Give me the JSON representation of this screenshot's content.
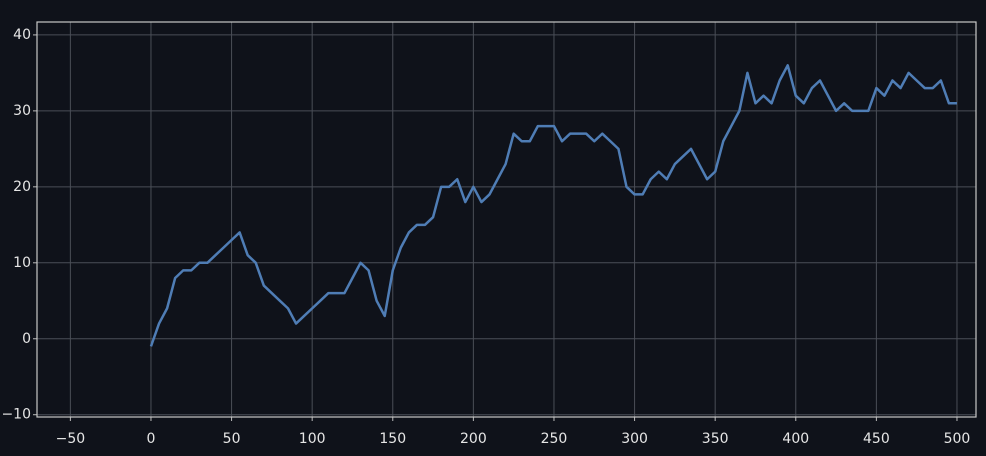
{
  "chart_data": {
    "type": "line",
    "x": [
      0,
      5,
      10,
      15,
      20,
      25,
      30,
      35,
      40,
      45,
      50,
      55,
      60,
      65,
      70,
      75,
      80,
      85,
      90,
      95,
      100,
      105,
      110,
      115,
      120,
      125,
      130,
      135,
      140,
      145,
      150,
      155,
      160,
      165,
      170,
      175,
      180,
      185,
      190,
      195,
      200,
      205,
      210,
      215,
      220,
      225,
      230,
      235,
      240,
      245,
      250,
      255,
      260,
      265,
      270,
      275,
      280,
      285,
      290,
      295,
      300,
      305,
      310,
      315,
      320,
      325,
      330,
      335,
      340,
      345,
      350,
      355,
      360,
      365,
      370,
      375,
      380,
      385,
      390,
      395,
      400,
      405,
      410,
      415,
      420,
      425,
      430,
      435,
      440,
      445,
      450,
      455,
      460,
      465,
      470,
      475,
      480,
      485,
      490,
      495,
      500
    ],
    "values": [
      -1,
      2,
      4,
      8,
      9,
      9,
      10,
      10,
      11,
      12,
      13,
      14,
      11,
      10,
      7,
      6,
      5,
      4,
      2,
      3,
      4,
      5,
      6,
      6,
      6,
      8,
      10,
      9,
      5,
      3,
      9,
      12,
      14,
      15,
      15,
      16,
      20,
      20,
      21,
      18,
      20,
      18,
      19,
      21,
      23,
      27,
      26,
      26,
      28,
      28,
      28,
      26,
      27,
      27,
      27,
      26,
      27,
      26,
      25,
      20,
      19,
      19,
      21,
      22,
      21,
      23,
      24,
      25,
      23,
      21,
      22,
      26,
      28,
      30,
      35,
      31,
      32,
      31,
      34,
      36,
      32,
      31,
      33,
      34,
      32,
      30,
      31,
      30,
      30,
      30,
      33,
      32,
      34,
      33,
      35,
      34,
      33,
      33,
      34,
      31,
      31
    ],
    "color": "#4f7db5",
    "xlim": [
      -70.7,
      511.8
    ],
    "ylim": [
      -10.3,
      41.7
    ],
    "xticks": [
      {
        "value": -50,
        "label": "−50"
      },
      0,
      50,
      100,
      150,
      200,
      250,
      300,
      350,
      400,
      450,
      500
    ],
    "yticks": [
      {
        "value": -10,
        "label": "−10"
      },
      0,
      10,
      20,
      30,
      40
    ],
    "grid": true
  }
}
